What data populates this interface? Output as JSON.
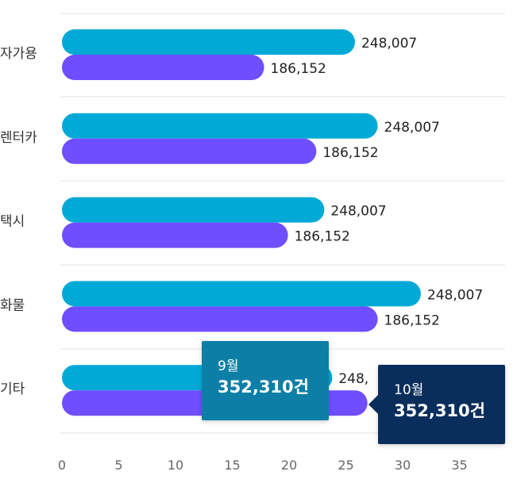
{
  "chart_data": {
    "type": "bar",
    "orientation": "horizontal",
    "categories": [
      "자가용",
      "렌터카",
      "택시",
      "화물",
      "기타"
    ],
    "series": [
      {
        "values": [
          25.8,
          27.8,
          23.1,
          31.6,
          23.8
        ],
        "labels": [
          "248,007",
          "248,007",
          "248,007",
          "248,007",
          "248,"
        ],
        "color": "#00a9d6"
      },
      {
        "values": [
          17.8,
          22.4,
          19.9,
          27.8,
          26.9
        ],
        "labels": [
          "186,152",
          "186,152",
          "186,152",
          "186,152",
          ""
        ],
        "color": "#6f4eff"
      }
    ],
    "xticks": [
      0,
      5,
      10,
      15,
      20,
      25,
      30,
      35
    ],
    "xlim": [
      0,
      38.5
    ],
    "grid": true,
    "tooltips": [
      {
        "month": "9월",
        "value": "352,310건",
        "color": "#0d7fa7"
      },
      {
        "month": "10월",
        "value": "352,310건",
        "color": "#0a2e5c"
      }
    ]
  }
}
